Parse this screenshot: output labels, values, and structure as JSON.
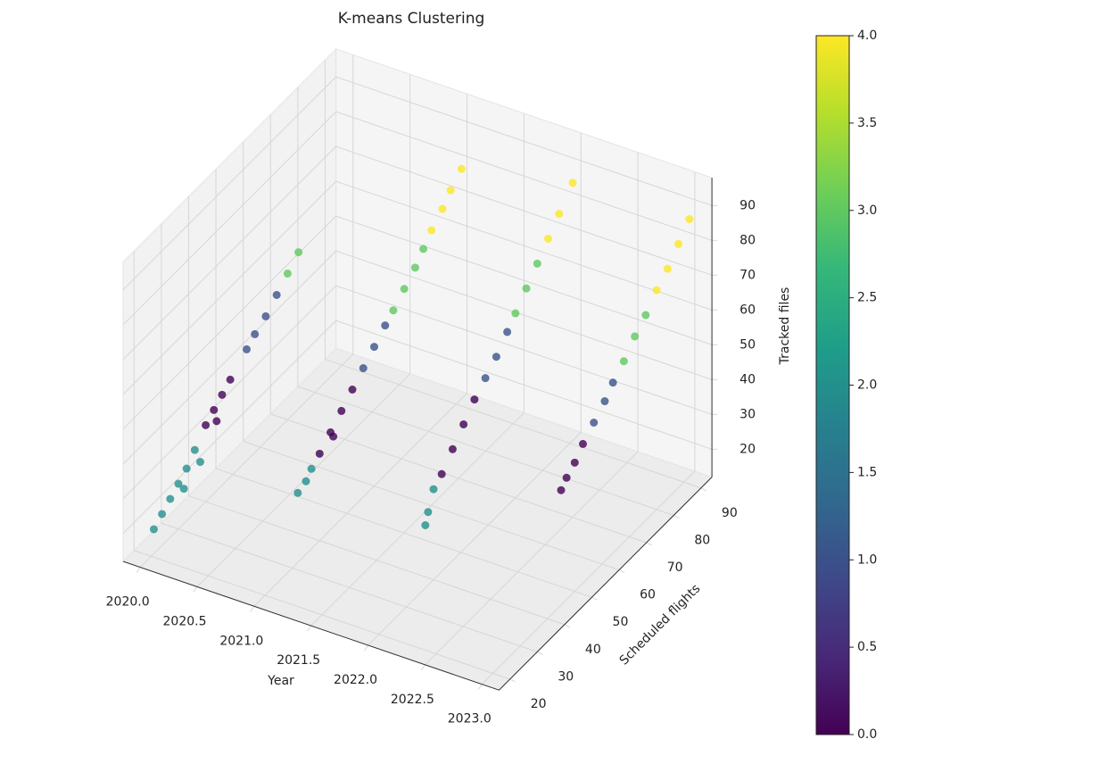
{
  "chart_data": {
    "type": "scatter3d",
    "title": "K-means Clustering",
    "xlabel": "Year",
    "ylabel": "Scheduled flights",
    "zlabel": "Tracked files",
    "colormap": "viridis",
    "clim": [
      0,
      4
    ],
    "cticks": [
      {
        "value": 0,
        "label": "0.0"
      },
      {
        "value": 0.5,
        "label": "0.5"
      },
      {
        "value": 1,
        "label": "1.0"
      },
      {
        "value": 1.5,
        "label": "1.5"
      },
      {
        "value": 2,
        "label": "2.0"
      },
      {
        "value": 2.5,
        "label": "2.5"
      },
      {
        "value": 3,
        "label": "3.0"
      },
      {
        "value": 3.5,
        "label": "3.5"
      },
      {
        "value": 4,
        "label": "4.0"
      }
    ],
    "xlim": [
      2019.85,
      2023.15
    ],
    "xticks": [
      {
        "value": 2020,
        "label": "2020.0"
      },
      {
        "value": 2020.5,
        "label": "2020.5"
      },
      {
        "value": 2021,
        "label": "2021.0"
      },
      {
        "value": 2021.5,
        "label": "2021.5"
      },
      {
        "value": 2022,
        "label": "2022.0"
      },
      {
        "value": 2022.5,
        "label": "2022.5"
      },
      {
        "value": 2023,
        "label": "2023.0"
      }
    ],
    "ylim": [
      16,
      94
    ],
    "yticks": [
      20,
      30,
      40,
      50,
      60,
      70,
      80,
      90
    ],
    "zlim": [
      12,
      98
    ],
    "zticks": [
      20,
      30,
      40,
      50,
      60,
      70,
      80,
      90
    ],
    "x": [
      2020,
      2020,
      2020,
      2020,
      2020,
      2020,
      2020,
      2020,
      2020,
      2020,
      2020,
      2020,
      2020,
      2020,
      2020,
      2020,
      2020,
      2020,
      2020,
      2021,
      2021,
      2021,
      2021,
      2021,
      2021,
      2021,
      2021,
      2021,
      2021,
      2021,
      2021,
      2021,
      2021,
      2021,
      2021,
      2021,
      2021,
      2021,
      2022,
      2022,
      2022,
      2022,
      2022,
      2022,
      2022,
      2022,
      2022,
      2022,
      2022,
      2022,
      2022,
      2022,
      2022,
      2022,
      2023,
      2023,
      2023,
      2023,
      2023,
      2023,
      2023,
      2023,
      2023,
      2023,
      2023,
      2023,
      2023,
      2023
    ],
    "y": [
      21,
      24,
      27,
      30,
      33,
      36,
      32,
      38,
      40,
      43,
      46,
      49,
      44,
      55,
      58,
      62,
      66,
      70,
      74,
      32,
      35,
      37,
      40,
      44,
      48,
      52,
      45,
      56,
      60,
      64,
      67,
      71,
      75,
      78,
      81,
      85,
      88,
      92,
      37,
      38,
      40,
      43,
      47,
      51,
      55,
      59,
      63,
      67,
      70,
      74,
      78,
      82,
      86,
      91,
      45,
      47,
      50,
      53,
      57,
      61,
      64,
      68,
      72,
      76,
      80,
      84,
      88,
      92
    ],
    "z": [
      19,
      21,
      23,
      25,
      27,
      30,
      22,
      25,
      34,
      36,
      38,
      40,
      32,
      44,
      46,
      48,
      51,
      54,
      57,
      32,
      33,
      35,
      37,
      40,
      43,
      46,
      38,
      49,
      52,
      55,
      57,
      60,
      63,
      66,
      69,
      72,
      75,
      78,
      30,
      33,
      38,
      40,
      44,
      48,
      52,
      55,
      58,
      62,
      65,
      69,
      73,
      77,
      81,
      86,
      45,
      47,
      49,
      52,
      55,
      58,
      61,
      64,
      68,
      71,
      75,
      78,
      82,
      86
    ],
    "cluster": [
      2,
      2,
      2,
      2,
      2,
      2,
      2,
      2,
      0,
      0,
      0,
      0,
      0,
      1,
      1,
      1,
      1,
      3,
      3,
      2,
      2,
      2,
      0,
      0,
      0,
      0,
      0,
      1,
      1,
      1,
      3,
      3,
      3,
      3,
      4,
      4,
      4,
      4,
      2,
      2,
      2,
      0,
      0,
      0,
      0,
      1,
      1,
      1,
      3,
      3,
      3,
      4,
      4,
      4,
      0,
      0,
      0,
      0,
      1,
      1,
      1,
      3,
      3,
      3,
      4,
      4,
      4,
      4
    ]
  }
}
